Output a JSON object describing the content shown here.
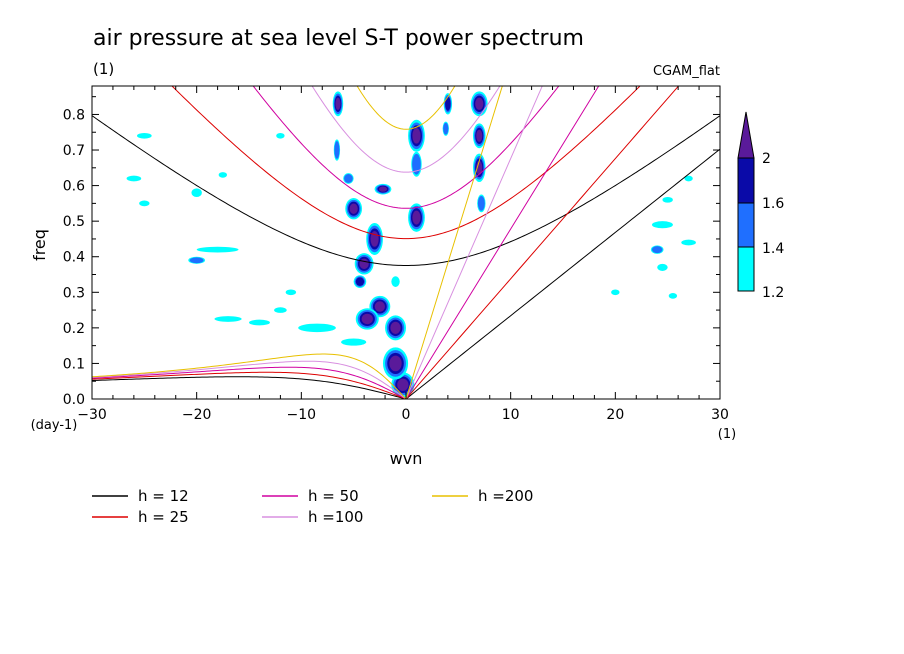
{
  "chart_data": {
    "type": "heatmap",
    "title": "air pressure at sea level S-T power spectrum",
    "subtitle": "(1)",
    "source": "CGAM_flat",
    "xlabel": "wvn",
    "xunit": "(1)",
    "ylabel": "freq",
    "yunit": "(day-1)",
    "xlim": [
      -30,
      30
    ],
    "ylim": [
      0,
      0.88
    ],
    "xticks": [
      -30,
      -20,
      -10,
      0,
      10,
      20,
      30
    ],
    "yticks": [
      0.0,
      0.1,
      0.2,
      0.3,
      0.4,
      0.5,
      0.6,
      0.7,
      0.8
    ],
    "colorbar": {
      "levels": [
        "1.2",
        "1.4",
        "1.6",
        "2"
      ],
      "colors": [
        "#00ffff",
        "#1f6fff",
        "#0a0aa8",
        "#5a1a9a"
      ]
    },
    "curves": [
      {
        "label": "h = 12",
        "h": 12,
        "color": "#000000"
      },
      {
        "label": "h = 25",
        "h": 25,
        "color": "#dd0000"
      },
      {
        "label": "h = 50",
        "h": 50,
        "color": "#d000a0"
      },
      {
        "label": "h =100",
        "h": 100,
        "color": "#d890e0"
      },
      {
        "label": "h =200",
        "h": 200,
        "color": "#e8c000"
      }
    ],
    "blobs": [
      {
        "x": -0.3,
        "y": 0.04,
        "rx": 1.1,
        "ry": 0.035,
        "level": 4
      },
      {
        "x": -1.0,
        "y": 0.1,
        "rx": 1.2,
        "ry": 0.045,
        "level": 4
      },
      {
        "x": -1.0,
        "y": 0.2,
        "rx": 1.0,
        "ry": 0.035,
        "level": 4
      },
      {
        "x": -2.5,
        "y": 0.26,
        "rx": 1.0,
        "ry": 0.03,
        "level": 4
      },
      {
        "x": -3.7,
        "y": 0.225,
        "rx": 1.1,
        "ry": 0.03,
        "level": 4
      },
      {
        "x": -4.4,
        "y": 0.33,
        "rx": 0.6,
        "ry": 0.018,
        "level": 3
      },
      {
        "x": -4.0,
        "y": 0.38,
        "rx": 0.9,
        "ry": 0.03,
        "level": 4
      },
      {
        "x": -3.0,
        "y": 0.45,
        "rx": 0.8,
        "ry": 0.045,
        "level": 4
      },
      {
        "x": -5.0,
        "y": 0.535,
        "rx": 0.8,
        "ry": 0.03,
        "level": 4
      },
      {
        "x": -5.5,
        "y": 0.62,
        "rx": 0.5,
        "ry": 0.015,
        "level": 2
      },
      {
        "x": -6.6,
        "y": 0.7,
        "rx": 0.3,
        "ry": 0.03,
        "level": 2
      },
      {
        "x": -6.5,
        "y": 0.83,
        "rx": 0.5,
        "ry": 0.035,
        "level": 4
      },
      {
        "x": -2.2,
        "y": 0.59,
        "rx": 0.8,
        "ry": 0.015,
        "level": 4
      },
      {
        "x": 1.0,
        "y": 0.51,
        "rx": 0.8,
        "ry": 0.04,
        "level": 4
      },
      {
        "x": 1.0,
        "y": 0.66,
        "rx": 0.5,
        "ry": 0.035,
        "level": 2
      },
      {
        "x": 1.0,
        "y": 0.74,
        "rx": 0.8,
        "ry": 0.045,
        "level": 4
      },
      {
        "x": 4.0,
        "y": 0.83,
        "rx": 0.4,
        "ry": 0.03,
        "level": 3
      },
      {
        "x": 3.8,
        "y": 0.76,
        "rx": 0.3,
        "ry": 0.02,
        "level": 2
      },
      {
        "x": 7.0,
        "y": 0.83,
        "rx": 0.8,
        "ry": 0.035,
        "level": 4
      },
      {
        "x": 7.0,
        "y": 0.74,
        "rx": 0.6,
        "ry": 0.035,
        "level": 4
      },
      {
        "x": 7.0,
        "y": 0.65,
        "rx": 0.6,
        "ry": 0.04,
        "level": 4
      },
      {
        "x": 7.2,
        "y": 0.55,
        "rx": 0.4,
        "ry": 0.025,
        "level": 2
      },
      {
        "x": -1.0,
        "y": 0.33,
        "rx": 0.4,
        "ry": 0.015,
        "level": 1
      },
      {
        "x": -8.5,
        "y": 0.2,
        "rx": 1.8,
        "ry": 0.012,
        "level": 1
      },
      {
        "x": -14.0,
        "y": 0.215,
        "rx": 1.0,
        "ry": 0.008,
        "level": 1
      },
      {
        "x": -17.0,
        "y": 0.225,
        "rx": 1.3,
        "ry": 0.008,
        "level": 1
      },
      {
        "x": -18.0,
        "y": 0.42,
        "rx": 2.0,
        "ry": 0.008,
        "level": 1
      },
      {
        "x": -20.0,
        "y": 0.39,
        "rx": 0.8,
        "ry": 0.01,
        "level": 2
      },
      {
        "x": -26.0,
        "y": 0.62,
        "rx": 0.7,
        "ry": 0.008,
        "level": 1
      },
      {
        "x": -20.0,
        "y": 0.58,
        "rx": 0.5,
        "ry": 0.012,
        "level": 1
      },
      {
        "x": -17.5,
        "y": 0.63,
        "rx": 0.4,
        "ry": 0.008,
        "level": 1
      },
      {
        "x": -25.0,
        "y": 0.55,
        "rx": 0.5,
        "ry": 0.008,
        "level": 1
      },
      {
        "x": -12.0,
        "y": 0.74,
        "rx": 0.4,
        "ry": 0.008,
        "level": 1
      },
      {
        "x": -5.0,
        "y": 0.16,
        "rx": 1.2,
        "ry": 0.01,
        "level": 1
      },
      {
        "x": -12.0,
        "y": 0.25,
        "rx": 0.6,
        "ry": 0.008,
        "level": 1
      },
      {
        "x": -11.0,
        "y": 0.3,
        "rx": 0.5,
        "ry": 0.008,
        "level": 1
      },
      {
        "x": -25.0,
        "y": 0.74,
        "rx": 0.7,
        "ry": 0.008,
        "level": 1
      },
      {
        "x": 24.5,
        "y": 0.49,
        "rx": 1.0,
        "ry": 0.01,
        "level": 1
      },
      {
        "x": 24.0,
        "y": 0.42,
        "rx": 0.6,
        "ry": 0.012,
        "level": 2
      },
      {
        "x": 24.5,
        "y": 0.37,
        "rx": 0.5,
        "ry": 0.01,
        "level": 1
      },
      {
        "x": 27.0,
        "y": 0.44,
        "rx": 0.7,
        "ry": 0.008,
        "level": 1
      },
      {
        "x": 25.0,
        "y": 0.56,
        "rx": 0.5,
        "ry": 0.008,
        "level": 1
      },
      {
        "x": 27.0,
        "y": 0.62,
        "rx": 0.4,
        "ry": 0.008,
        "level": 1
      },
      {
        "x": 20.0,
        "y": 0.3,
        "rx": 0.4,
        "ry": 0.008,
        "level": 1
      },
      {
        "x": 25.5,
        "y": 0.29,
        "rx": 0.4,
        "ry": 0.008,
        "level": 1
      }
    ]
  }
}
